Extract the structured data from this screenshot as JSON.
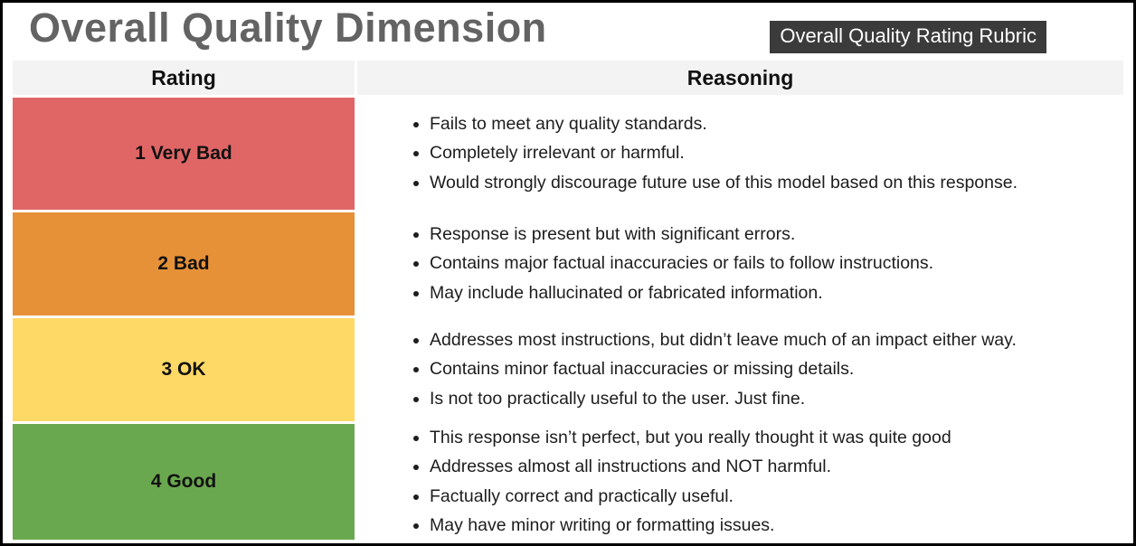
{
  "page": {
    "title": "Overall Quality Dimension",
    "badge": "Overall Quality Rating Rubric"
  },
  "table": {
    "headers": [
      "Rating",
      "Reasoning"
    ],
    "rows": [
      {
        "rating": "1 Very Bad",
        "color": "#e06666",
        "reasons": [
          "Fails to meet any quality standards.",
          "Completely irrelevant or harmful.",
          "Would strongly discourage future use of this model based on this response."
        ]
      },
      {
        "rating": "2 Bad",
        "color": "#e69138",
        "reasons": [
          "Response is present but with significant errors.",
          "Contains major factual inaccuracies or fails to follow instructions.",
          "May include hallucinated or fabricated information."
        ]
      },
      {
        "rating": "3 OK",
        "color": "#ffd966",
        "reasons": [
          "Addresses most instructions, but didn’t leave much of an impact either way.",
          "Contains minor factual inaccuracies or missing details.",
          "Is not too practically useful to the user. Just fine."
        ]
      },
      {
        "rating": "4 Good",
        "color": "#6aa84f",
        "reasons": [
          "This response isn’t perfect, but you really thought it was quite good",
          "Addresses almost all instructions and NOT harmful.",
          "Factually correct and practically useful.",
          "May have minor writing or formatting issues."
        ]
      }
    ]
  }
}
